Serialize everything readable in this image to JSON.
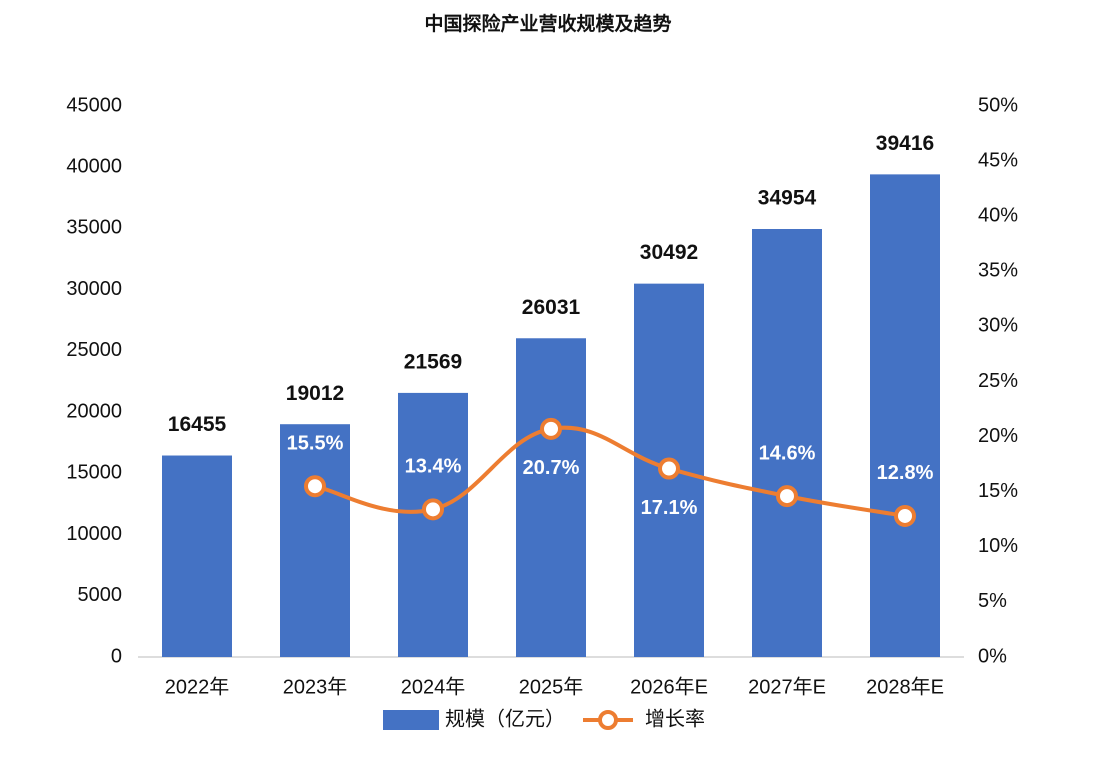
{
  "chart_data": {
    "type": "bar",
    "title": "中国探险产业营收规模及趋势",
    "categories": [
      "2022年",
      "2023年",
      "2024年",
      "2025年",
      "2026年E",
      "2027年E",
      "2028年E"
    ],
    "series": [
      {
        "name": "规模（亿元）",
        "type": "bar",
        "color": "#4472c4",
        "values": [
          16455,
          19012,
          21569,
          26031,
          30492,
          34954,
          39416
        ]
      },
      {
        "name": "增长率",
        "type": "line",
        "axis": "y2",
        "color": "#ed7d31",
        "values": [
          null,
          15.5,
          13.4,
          20.7,
          17.1,
          14.6,
          12.8
        ],
        "value_labels": [
          null,
          "15.5%",
          "13.4%",
          "20.7%",
          "17.1%",
          "14.6%",
          "12.8%"
        ]
      }
    ],
    "ylim": [
      0,
      45000
    ],
    "yticks": [
      0,
      5000,
      10000,
      15000,
      20000,
      25000,
      30000,
      35000,
      40000,
      45000
    ],
    "y2lim": [
      0,
      50
    ],
    "y2ticks": [
      {
        "value": 0,
        "label": "0%"
      },
      {
        "value": 5,
        "label": "5%"
      },
      {
        "value": 10,
        "label": "10%"
      },
      {
        "value": 15,
        "label": "15%"
      },
      {
        "value": 20,
        "label": "20%"
      },
      {
        "value": 25,
        "label": "25%"
      },
      {
        "value": 30,
        "label": "30%"
      },
      {
        "value": 35,
        "label": "35%"
      },
      {
        "value": 40,
        "label": "40%"
      },
      {
        "value": 45,
        "label": "45%"
      },
      {
        "value": 50,
        "label": "50%"
      }
    ],
    "legend": "bottom",
    "grid": false
  }
}
